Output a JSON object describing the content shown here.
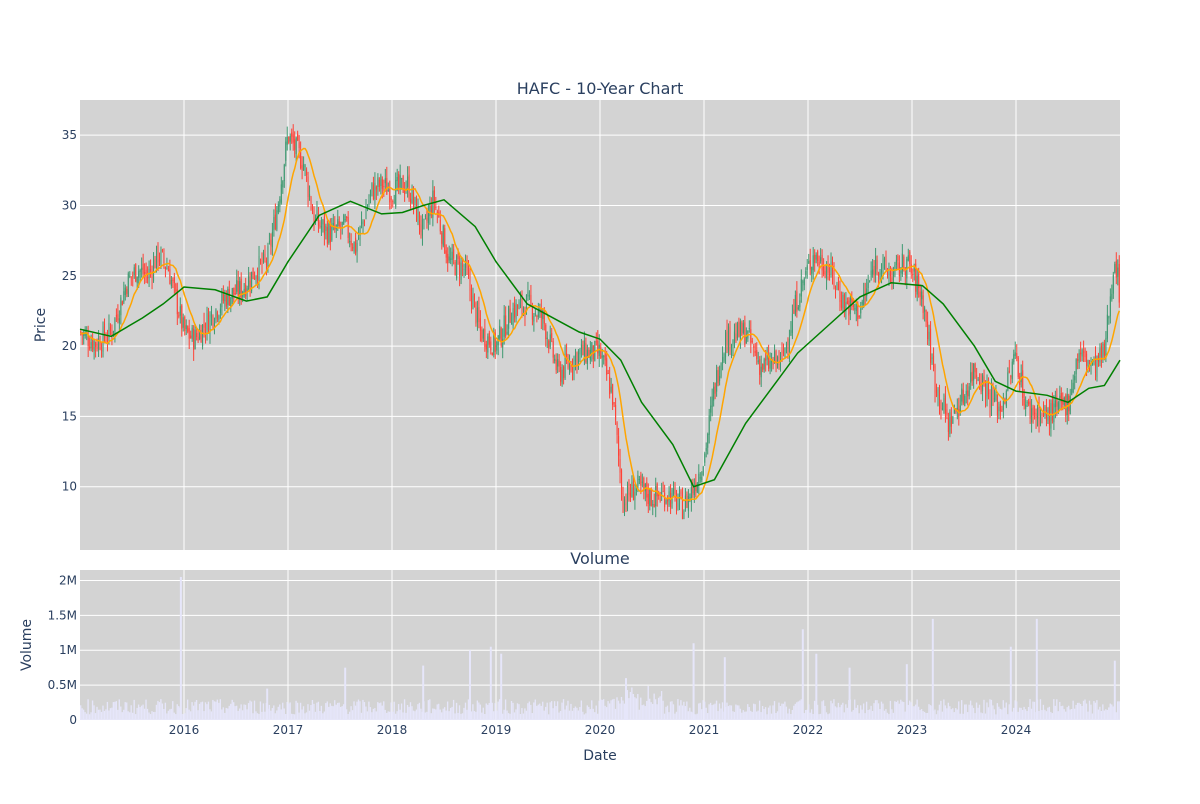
{
  "chart_data": [
    {
      "type": "candlestick",
      "title": "HAFC - 10-Year Chart",
      "ylabel": "Price",
      "xlabel": "",
      "x_range": [
        2015.0,
        2025.0
      ],
      "ylim": [
        5.5,
        37.5
      ],
      "y_ticks": [
        10,
        15,
        20,
        25,
        30,
        35
      ],
      "x_ticks": [
        2016,
        2017,
        2018,
        2019,
        2020,
        2021,
        2022,
        2023,
        2024
      ],
      "grid": true,
      "background": "#d3d3d3",
      "colors": {
        "up": "#3d9970",
        "down": "#ff4136",
        "ma_short": "#ffa500",
        "ma_long": "#008000"
      },
      "price_path": [
        {
          "x": 2015.0,
          "y": 21.0
        },
        {
          "x": 2015.15,
          "y": 20.2
        },
        {
          "x": 2015.3,
          "y": 21.0
        },
        {
          "x": 2015.45,
          "y": 24.5
        },
        {
          "x": 2015.55,
          "y": 25.5
        },
        {
          "x": 2015.65,
          "y": 25.0
        },
        {
          "x": 2015.75,
          "y": 26.5
        },
        {
          "x": 2015.85,
          "y": 25.5
        },
        {
          "x": 2016.0,
          "y": 21.0
        },
        {
          "x": 2016.1,
          "y": 20.5
        },
        {
          "x": 2016.25,
          "y": 22.0
        },
        {
          "x": 2016.4,
          "y": 23.5
        },
        {
          "x": 2016.55,
          "y": 24.0
        },
        {
          "x": 2016.7,
          "y": 25.5
        },
        {
          "x": 2016.8,
          "y": 26.0
        },
        {
          "x": 2016.9,
          "y": 30.0
        },
        {
          "x": 2017.0,
          "y": 35.0
        },
        {
          "x": 2017.15,
          "y": 33.0
        },
        {
          "x": 2017.25,
          "y": 29.0
        },
        {
          "x": 2017.4,
          "y": 28.0
        },
        {
          "x": 2017.55,
          "y": 28.5
        },
        {
          "x": 2017.65,
          "y": 27.0
        },
        {
          "x": 2017.8,
          "y": 31.0
        },
        {
          "x": 2017.9,
          "y": 31.5
        },
        {
          "x": 2018.0,
          "y": 31.0
        },
        {
          "x": 2018.15,
          "y": 31.5
        },
        {
          "x": 2018.3,
          "y": 28.0
        },
        {
          "x": 2018.4,
          "y": 30.5
        },
        {
          "x": 2018.55,
          "y": 26.0
        },
        {
          "x": 2018.7,
          "y": 25.5
        },
        {
          "x": 2018.85,
          "y": 21.0
        },
        {
          "x": 2019.0,
          "y": 20.0
        },
        {
          "x": 2019.15,
          "y": 22.5
        },
        {
          "x": 2019.3,
          "y": 23.0
        },
        {
          "x": 2019.45,
          "y": 22.0
        },
        {
          "x": 2019.6,
          "y": 18.0
        },
        {
          "x": 2019.8,
          "y": 19.5
        },
        {
          "x": 2020.0,
          "y": 19.5
        },
        {
          "x": 2020.12,
          "y": 16.5
        },
        {
          "x": 2020.22,
          "y": 9.0
        },
        {
          "x": 2020.35,
          "y": 10.0
        },
        {
          "x": 2020.5,
          "y": 9.2
        },
        {
          "x": 2020.65,
          "y": 9.5
        },
        {
          "x": 2020.8,
          "y": 8.5
        },
        {
          "x": 2020.9,
          "y": 10.0
        },
        {
          "x": 2021.0,
          "y": 12.0
        },
        {
          "x": 2021.1,
          "y": 17.0
        },
        {
          "x": 2021.2,
          "y": 20.5
        },
        {
          "x": 2021.4,
          "y": 21.0
        },
        {
          "x": 2021.55,
          "y": 18.5
        },
        {
          "x": 2021.75,
          "y": 19.0
        },
        {
          "x": 2021.9,
          "y": 23.5
        },
        {
          "x": 2022.05,
          "y": 26.5
        },
        {
          "x": 2022.2,
          "y": 25.5
        },
        {
          "x": 2022.35,
          "y": 23.0
        },
        {
          "x": 2022.5,
          "y": 22.5
        },
        {
          "x": 2022.65,
          "y": 26.0
        },
        {
          "x": 2022.8,
          "y": 25.0
        },
        {
          "x": 2022.95,
          "y": 26.0
        },
        {
          "x": 2023.1,
          "y": 23.5
        },
        {
          "x": 2023.22,
          "y": 17.5
        },
        {
          "x": 2023.35,
          "y": 14.5
        },
        {
          "x": 2023.5,
          "y": 16.5
        },
        {
          "x": 2023.6,
          "y": 18.5
        },
        {
          "x": 2023.75,
          "y": 16.5
        },
        {
          "x": 2023.85,
          "y": 15.5
        },
        {
          "x": 2024.0,
          "y": 19.5
        },
        {
          "x": 2024.1,
          "y": 15.5
        },
        {
          "x": 2024.3,
          "y": 15.0
        },
        {
          "x": 2024.5,
          "y": 16.0
        },
        {
          "x": 2024.6,
          "y": 19.5
        },
        {
          "x": 2024.75,
          "y": 18.5
        },
        {
          "x": 2024.85,
          "y": 19.5
        },
        {
          "x": 2024.95,
          "y": 26.5
        },
        {
          "x": 2025.0,
          "y": 23.5
        }
      ],
      "ma_long": [
        {
          "x": 2015.0,
          "y": 21.2
        },
        {
          "x": 2015.3,
          "y": 20.7
        },
        {
          "x": 2015.6,
          "y": 22.0
        },
        {
          "x": 2015.8,
          "y": 23.0
        },
        {
          "x": 2016.0,
          "y": 24.2
        },
        {
          "x": 2016.3,
          "y": 24.0
        },
        {
          "x": 2016.6,
          "y": 23.2
        },
        {
          "x": 2016.8,
          "y": 23.5
        },
        {
          "x": 2017.0,
          "y": 26.0
        },
        {
          "x": 2017.3,
          "y": 29.3
        },
        {
          "x": 2017.6,
          "y": 30.3
        },
        {
          "x": 2017.9,
          "y": 29.4
        },
        {
          "x": 2018.1,
          "y": 29.5
        },
        {
          "x": 2018.3,
          "y": 30.0
        },
        {
          "x": 2018.5,
          "y": 30.4
        },
        {
          "x": 2018.8,
          "y": 28.5
        },
        {
          "x": 2019.0,
          "y": 26.0
        },
        {
          "x": 2019.3,
          "y": 23.0
        },
        {
          "x": 2019.6,
          "y": 21.8
        },
        {
          "x": 2019.8,
          "y": 21.0
        },
        {
          "x": 2020.0,
          "y": 20.5
        },
        {
          "x": 2020.2,
          "y": 19.0
        },
        {
          "x": 2020.4,
          "y": 16.0
        },
        {
          "x": 2020.7,
          "y": 13.0
        },
        {
          "x": 2020.9,
          "y": 10.0
        },
        {
          "x": 2021.1,
          "y": 10.5
        },
        {
          "x": 2021.4,
          "y": 14.5
        },
        {
          "x": 2021.7,
          "y": 17.5
        },
        {
          "x": 2021.9,
          "y": 19.5
        },
        {
          "x": 2022.2,
          "y": 21.5
        },
        {
          "x": 2022.5,
          "y": 23.5
        },
        {
          "x": 2022.8,
          "y": 24.5
        },
        {
          "x": 2023.1,
          "y": 24.3
        },
        {
          "x": 2023.3,
          "y": 23.0
        },
        {
          "x": 2023.6,
          "y": 20.0
        },
        {
          "x": 2023.8,
          "y": 17.5
        },
        {
          "x": 2024.0,
          "y": 16.8
        },
        {
          "x": 2024.3,
          "y": 16.5
        },
        {
          "x": 2024.5,
          "y": 16.0
        },
        {
          "x": 2024.7,
          "y": 17.0
        },
        {
          "x": 2024.85,
          "y": 17.2
        },
        {
          "x": 2025.0,
          "y": 19.0
        }
      ]
    },
    {
      "type": "bar",
      "title": "Volume",
      "xlabel": "Date",
      "ylabel": "Volume",
      "x_range": [
        2015.0,
        2025.0
      ],
      "ylim": [
        0,
        2150000
      ],
      "y_ticks": [
        0,
        500000,
        1000000,
        1500000,
        2000000
      ],
      "y_tick_labels": [
        "0",
        "0.5M",
        "1M",
        "1.5M",
        "2M"
      ],
      "x_ticks": [
        2016,
        2017,
        2018,
        2019,
        2020,
        2021,
        2022,
        2023,
        2024
      ],
      "x_tick_labels": [
        "2016",
        "2017",
        "2018",
        "2019",
        "2020",
        "2021",
        "2022",
        "2023",
        "2024"
      ],
      "grid": true,
      "background": "#d3d3d3",
      "bar_color": "#e6e6fa",
      "volume_spikes": [
        {
          "x": 2015.97,
          "v": 2050000
        },
        {
          "x": 2016.8,
          "v": 450000
        },
        {
          "x": 2017.55,
          "v": 750000
        },
        {
          "x": 2018.3,
          "v": 780000
        },
        {
          "x": 2018.75,
          "v": 1000000
        },
        {
          "x": 2018.95,
          "v": 1050000
        },
        {
          "x": 2019.05,
          "v": 950000
        },
        {
          "x": 2020.25,
          "v": 600000
        },
        {
          "x": 2020.9,
          "v": 1100000
        },
        {
          "x": 2021.2,
          "v": 900000
        },
        {
          "x": 2021.95,
          "v": 1300000
        },
        {
          "x": 2022.08,
          "v": 950000
        },
        {
          "x": 2022.4,
          "v": 750000
        },
        {
          "x": 2022.95,
          "v": 800000
        },
        {
          "x": 2023.2,
          "v": 1450000
        },
        {
          "x": 2023.95,
          "v": 1050000
        },
        {
          "x": 2024.2,
          "v": 1450000
        },
        {
          "x": 2024.95,
          "v": 850000
        }
      ]
    }
  ]
}
